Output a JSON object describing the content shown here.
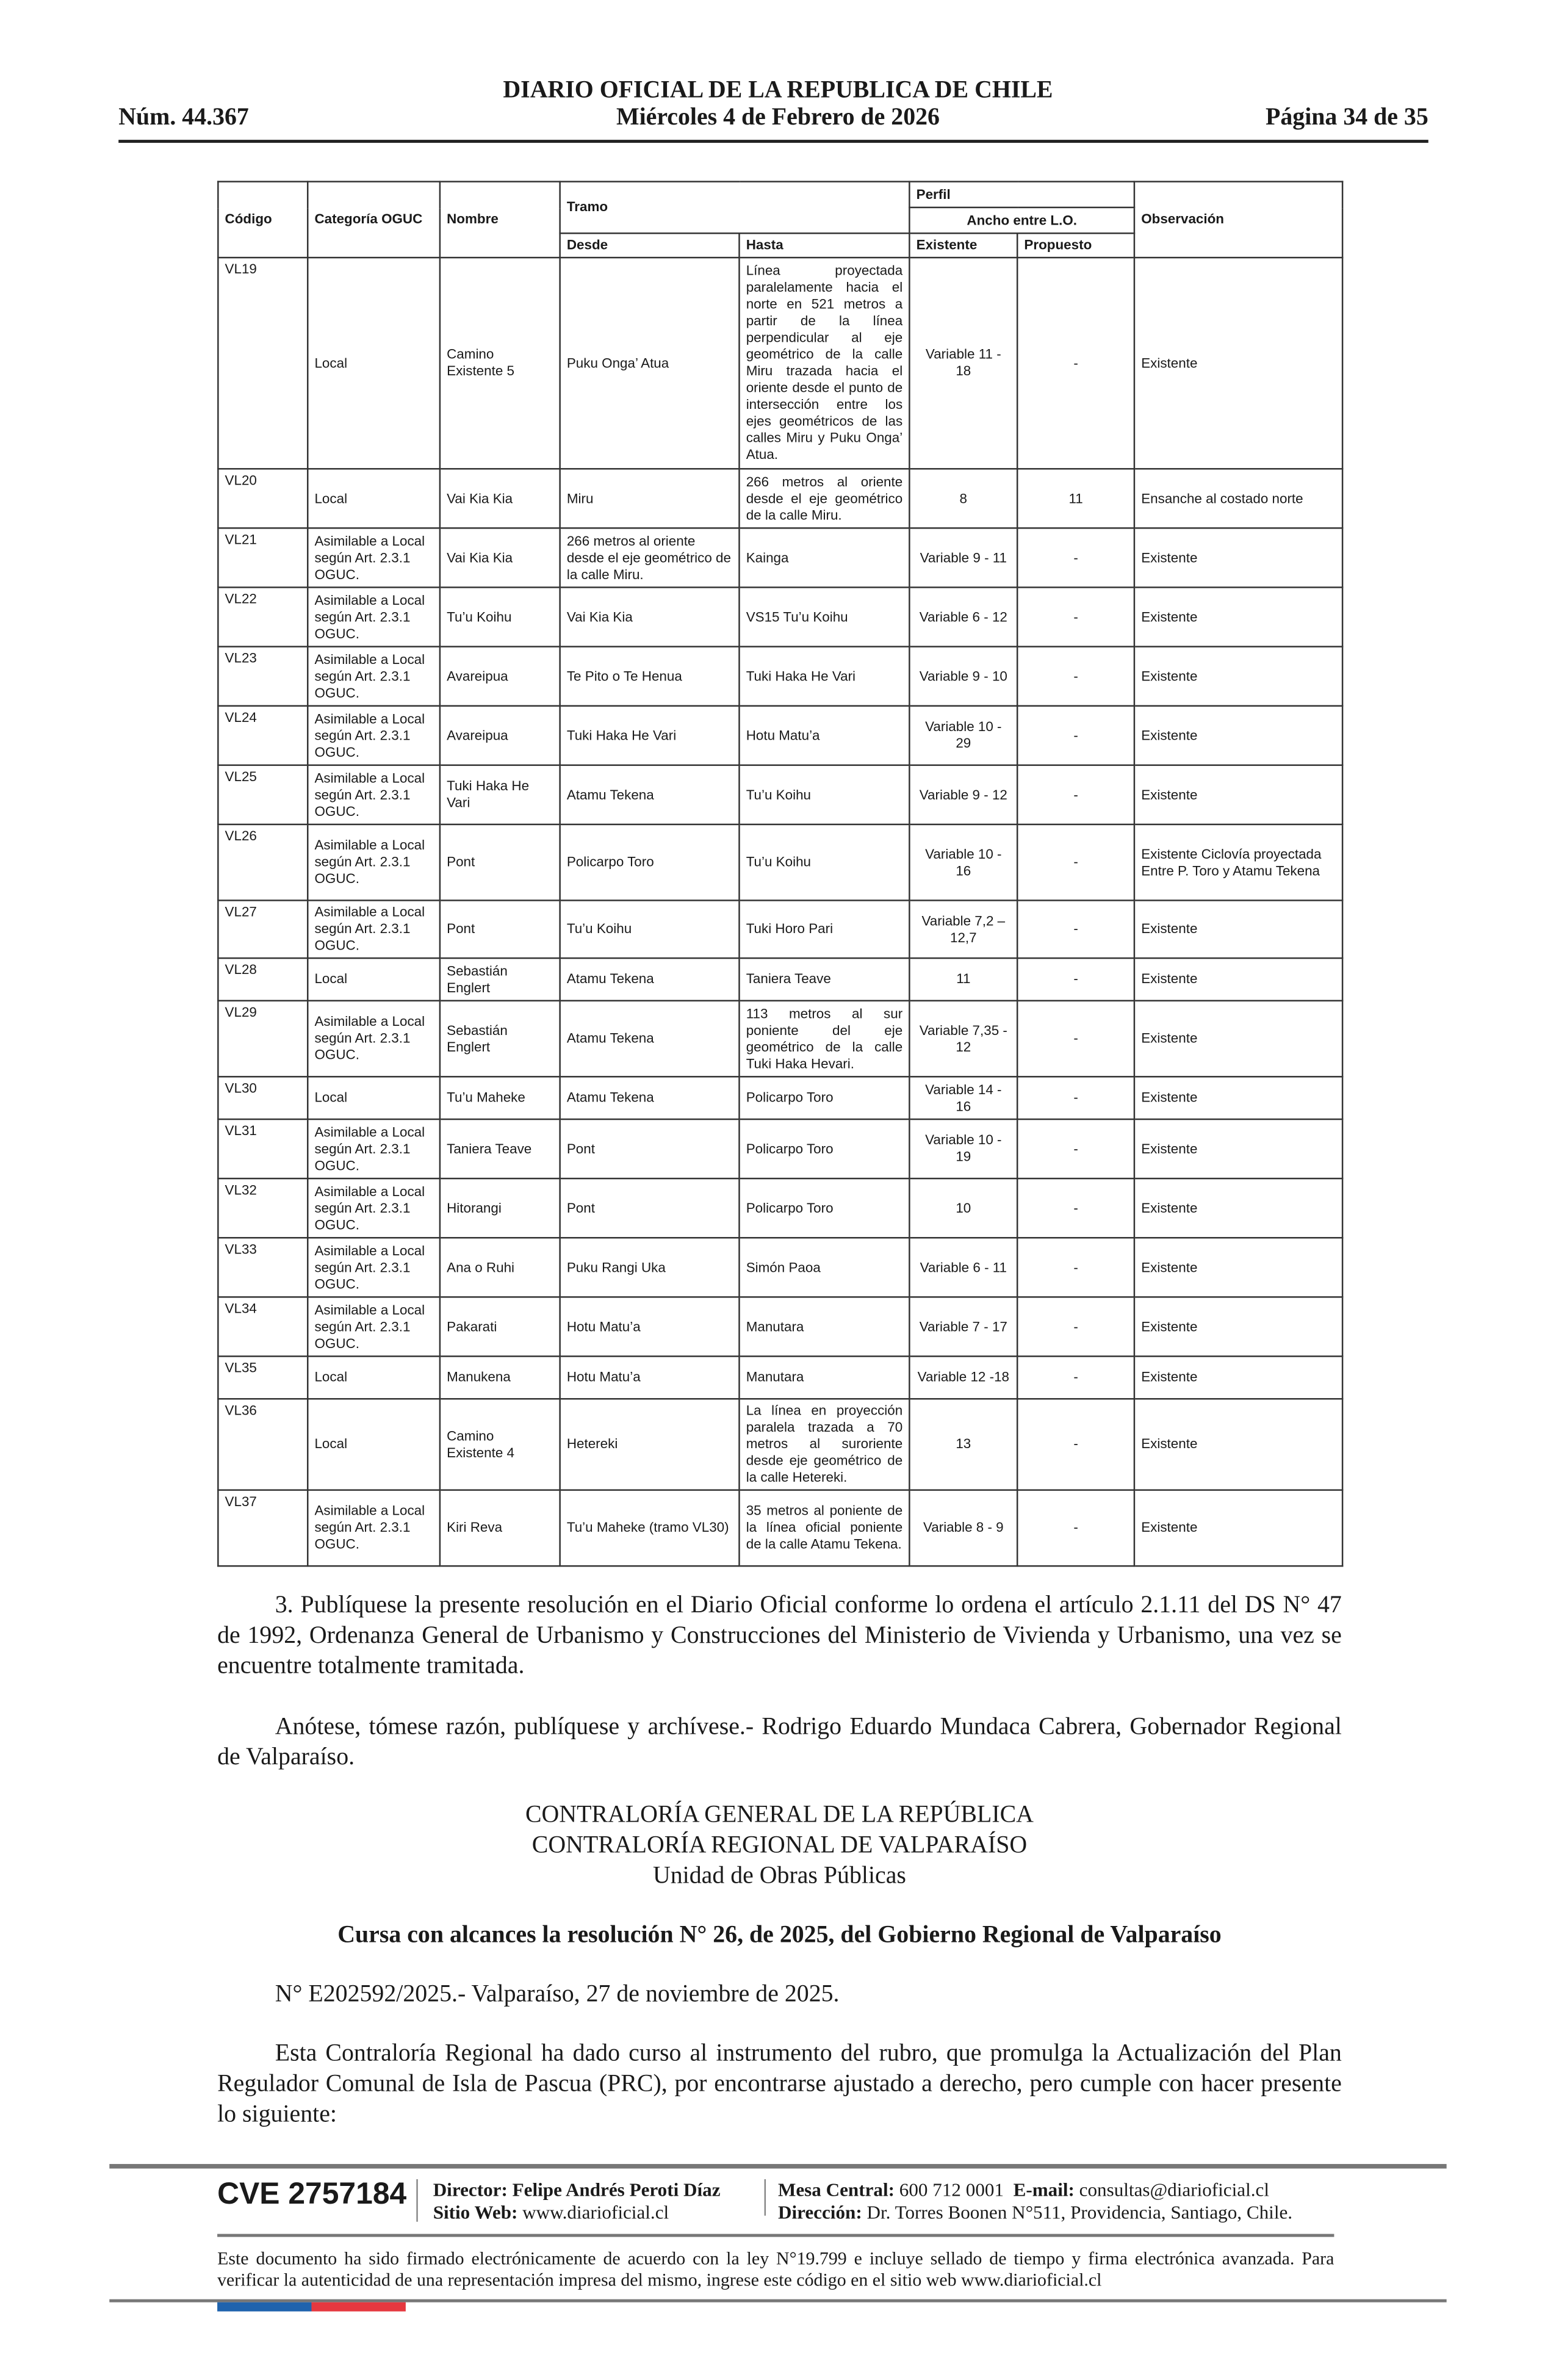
{
  "header": {
    "title": "DIARIO OFICIAL DE LA REPUBLICA DE CHILE",
    "date": "Miércoles 4 de Febrero de 2026",
    "number": "Núm. 44.367",
    "page": "Página 34 de 35"
  },
  "table": {
    "headers": {
      "codigo": "Código",
      "categoria": "Categoría OGUC",
      "nombre": "Nombre",
      "tramo": "Tramo",
      "desde": "Desde",
      "hasta": "Hasta",
      "perfil": "Perfil",
      "ancho": "Ancho entre L.O.",
      "existente": "Existente",
      "propuesto": "Propuesto",
      "observacion": "Observación"
    },
    "rows": [
      {
        "codigo": "VL19",
        "categoria": "Local",
        "nombre": "Camino Existente 5",
        "desde": "Puku Onga’ Atua",
        "hasta": "Línea proyectada paralelamente hacia el norte en 521 metros a partir de la línea perpendicular al eje geométrico de la calle Miru trazada hacia el oriente desde el punto de intersección entre los ejes geométricos de las calles Miru y Puku Onga’ Atua.",
        "existente": "Variable 11 - 18",
        "propuesto": "-",
        "observacion": "Existente"
      },
      {
        "codigo": "VL20",
        "categoria": "Local",
        "nombre": "Vai Kia Kia",
        "desde": "Miru",
        "hasta": "266 metros al oriente desde el eje geométrico de la calle Miru.",
        "existente": "8",
        "propuesto": "11",
        "observacion": "Ensanche al costado norte"
      },
      {
        "codigo": "VL21",
        "categoria": "Asimilable a Local según Art. 2.3.1 OGUC.",
        "nombre": "Vai Kia Kia",
        "desde": "266 metros al oriente desde el eje geométrico de la calle Miru.",
        "hasta": "Kainga",
        "existente": "Variable 9 - 11",
        "propuesto": "-",
        "observacion": "Existente"
      },
      {
        "codigo": "VL22",
        "categoria": "Asimilable a Local según Art. 2.3.1 OGUC.",
        "nombre": "Tu’u Koihu",
        "desde": "Vai Kia Kia",
        "hasta": "VS15 Tu’u Koihu",
        "existente": "Variable 6 - 12",
        "propuesto": "-",
        "observacion": "Existente"
      },
      {
        "codigo": "VL23",
        "categoria": "Asimilable a Local según Art. 2.3.1 OGUC.",
        "nombre": "Avareipua",
        "desde": "Te Pito o Te Henua",
        "hasta": "Tuki Haka He Vari",
        "existente": "Variable 9 - 10",
        "propuesto": "-",
        "observacion": "Existente"
      },
      {
        "codigo": "VL24",
        "categoria": "Asimilable a Local según Art. 2.3.1 OGUC.",
        "nombre": "Avareipua",
        "desde": "Tuki Haka He Vari",
        "hasta": "Hotu Matu’a",
        "existente": "Variable 10 - 29",
        "propuesto": "-",
        "observacion": "Existente"
      },
      {
        "codigo": "VL25",
        "categoria": "Asimilable a Local según Art. 2.3.1 OGUC.",
        "nombre": "Tuki Haka He Vari",
        "desde": "Atamu Tekena",
        "hasta": "Tu’u Koihu",
        "existente": "Variable 9 - 12",
        "propuesto": "-",
        "observacion": "Existente"
      },
      {
        "codigo": "VL26",
        "categoria": "Asimilable a Local según Art. 2.3.1 OGUC.",
        "nombre": "Pont",
        "desde": "Policarpo Toro",
        "hasta": "Tu’u Koihu",
        "existente": "Variable 10 - 16",
        "propuesto": "-",
        "observacion": "Existente Ciclovía proyectada Entre P. Toro y Atamu Tekena"
      },
      {
        "codigo": "VL27",
        "categoria": "Asimilable a Local según Art. 2.3.1 OGUC.",
        "nombre": "Pont",
        "desde": "Tu’u Koihu",
        "hasta": "Tuki Horo Pari",
        "existente": "Variable 7,2 – 12,7",
        "propuesto": "-",
        "observacion": "Existente"
      },
      {
        "codigo": "VL28",
        "categoria": "Local",
        "nombre": "Sebastián Englert",
        "desde": "Atamu Tekena",
        "hasta": "Taniera Teave",
        "existente": "11",
        "propuesto": "-",
        "observacion": "Existente"
      },
      {
        "codigo": "VL29",
        "categoria": "Asimilable a Local según Art. 2.3.1 OGUC.",
        "nombre": "Sebastián Englert",
        "desde": "Atamu Tekena",
        "hasta": "113 metros al sur poniente del eje geométrico de la calle Tuki Haka Hevari.",
        "existente": "Variable 7,35 - 12",
        "propuesto": "-",
        "observacion": "Existente"
      },
      {
        "codigo": "VL30",
        "categoria": "Local",
        "nombre": "Tu’u Maheke",
        "desde": "Atamu Tekena",
        "hasta": "Policarpo Toro",
        "existente": "Variable 14 - 16",
        "propuesto": "-",
        "observacion": "Existente"
      },
      {
        "codigo": "VL31",
        "categoria": "Asimilable a Local según Art. 2.3.1 OGUC.",
        "nombre": "Taniera Teave",
        "desde": "Pont",
        "hasta": "Policarpo Toro",
        "existente": "Variable 10 - 19",
        "propuesto": "-",
        "observacion": "Existente"
      },
      {
        "codigo": "VL32",
        "categoria": "Asimilable a Local según Art. 2.3.1 OGUC.",
        "nombre": "Hitorangi",
        "desde": "Pont",
        "hasta": "Policarpo Toro",
        "existente": "10",
        "propuesto": "-",
        "observacion": "Existente"
      },
      {
        "codigo": "VL33",
        "categoria": "Asimilable a Local según Art. 2.3.1 OGUC.",
        "nombre": "Ana o Ruhi",
        "desde": "Puku Rangi Uka",
        "hasta": "Simón Paoa",
        "existente": "Variable 6 - 11",
        "propuesto": "-",
        "observacion": "Existente"
      },
      {
        "codigo": "VL34",
        "categoria": "Asimilable a Local según Art. 2.3.1 OGUC.",
        "nombre": "Pakarati",
        "desde": "Hotu Matu’a",
        "hasta": "Manutara",
        "existente": "Variable 7 - 17",
        "propuesto": "-",
        "observacion": "Existente"
      },
      {
        "codigo": "VL35",
        "categoria": "Local",
        "nombre": "Manukena",
        "desde": "Hotu Matu’a",
        "hasta": "Manutara",
        "existente": "Variable 12 -18",
        "propuesto": "-",
        "observacion": "Existente"
      },
      {
        "codigo": "VL36",
        "categoria": "Local",
        "nombre": "Camino Existente 4",
        "desde": "Hetereki",
        "hasta": "La línea en proyección paralela trazada a 70 metros al suroriente desde eje geométrico de la calle Hetereki.",
        "existente": "13",
        "propuesto": "-",
        "observacion": "Existente"
      },
      {
        "codigo": "VL37",
        "categoria": "Asimilable a Local según Art. 2.3.1 OGUC.",
        "nombre": "Kiri Reva",
        "desde": "Tu’u Maheke (tramo VL30)",
        "hasta": "35 metros al poniente de la línea oficial poniente de la calle Atamu Tekena.",
        "existente": "Variable 8 - 9",
        "propuesto": "-",
        "observacion": "Existente"
      }
    ]
  },
  "body": {
    "p1": "3. Publíquese la presente resolución en el Diario Oficial conforme lo ordena el artículo 2.1.11 del DS N° 47 de 1992, Ordenanza General de Urbanismo y Construcciones del Ministerio de Vivienda y Urbanismo, una vez se encuentre totalmente tramitada.",
    "p2": "Anótese, tómese razón, publíquese y archívese.- Rodrigo Eduardo Mundaca Cabrera, Gobernador Regional de Valparaíso.",
    "org1": "CONTRALORÍA GENERAL DE LA REPÚBLICA",
    "org2": "CONTRALORÍA REGIONAL DE VALPARAÍSO",
    "org3": "Unidad de Obras Públicas",
    "heading": "Cursa con alcances la resolución N° 26, de 2025, del Gobierno Regional de Valparaíso",
    "ref": "N° E202592/2025.- Valparaíso, 27 de noviembre de 2025.",
    "p3": "Esta Contraloría Regional ha dado curso al instrumento del rubro, que promulga la Actualización del Plan Regulador Comunal de Isla de Pascua (PRC), por encontrarse ajustado a derecho, pero cumple con hacer presente lo siguiente:"
  },
  "footer": {
    "cve": "CVE 2757184",
    "director_label": "Director:",
    "director": "Felipe Andrés Peroti Díaz",
    "web_label": "Sitio Web:",
    "web": "www.diarioficial.cl",
    "mesa_label": "Mesa Central:",
    "mesa": "600 712 0001",
    "email_label": "E-mail:",
    "email": "consultas@diarioficial.cl",
    "dir_label": "Dirección:",
    "dir": "Dr. Torres Boonen N°511, Providencia, Santiago, Chile.",
    "signature": "Este documento ha sido firmado electrónicamente de acuerdo con la ley N°19.799 e incluye sellado de tiempo y firma electrónica avanzada. Para verificar la autenticidad de una representación impresa del mismo, ingrese este código en el sitio web www.diarioficial.cl",
    "colors": {
      "blue": "#1f63ad",
      "red": "#e5383f"
    }
  }
}
